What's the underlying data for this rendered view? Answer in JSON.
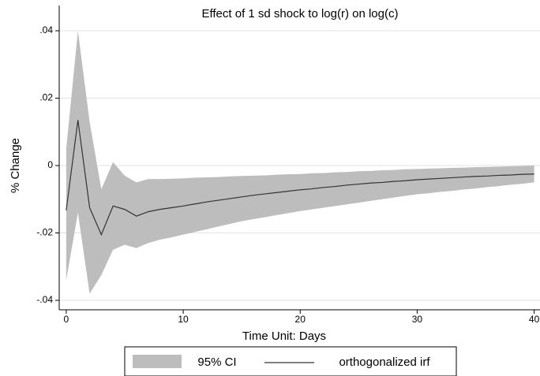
{
  "chart_data": {
    "type": "line",
    "title": "Effect of 1 sd shock to log(r) on log(c)",
    "x_label": "Time Unit: Days",
    "y_label": "% Change",
    "x": [
      0,
      1,
      2,
      3,
      4,
      5,
      6,
      7,
      8,
      9,
      10,
      11,
      12,
      13,
      14,
      15,
      16,
      17,
      18,
      19,
      20,
      21,
      22,
      23,
      24,
      25,
      26,
      27,
      28,
      29,
      30,
      31,
      32,
      33,
      34,
      35,
      36,
      37,
      38,
      39,
      40
    ],
    "band": {
      "name": "95% CI",
      "color": "#bdbdbd",
      "upper": [
        0.005,
        0.04,
        0.013,
        -0.007,
        0.001,
        -0.003,
        -0.005,
        -0.004,
        -0.004,
        -0.0039,
        -0.0038,
        -0.0036,
        -0.0035,
        -0.0034,
        -0.0032,
        -0.0031,
        -0.003,
        -0.0029,
        -0.0027,
        -0.0026,
        -0.0025,
        -0.0023,
        -0.0022,
        -0.002,
        -0.0019,
        -0.0017,
        -0.0016,
        -0.0014,
        -0.0013,
        -0.0011,
        -0.001,
        -0.0009,
        -0.0008,
        -0.0007,
        -0.0006,
        -0.0005,
        -0.0004,
        -0.0003,
        -0.0002,
        -0.0001,
        0
      ],
      "lower": [
        -0.034,
        -0.014,
        -0.038,
        -0.0325,
        -0.025,
        -0.0235,
        -0.0245,
        -0.023,
        -0.022,
        -0.0213,
        -0.0205,
        -0.0197,
        -0.0189,
        -0.0181,
        -0.0173,
        -0.0165,
        -0.0159,
        -0.0153,
        -0.0147,
        -0.0141,
        -0.0135,
        -0.013,
        -0.0125,
        -0.012,
        -0.0115,
        -0.011,
        -0.0105,
        -0.01,
        -0.0095,
        -0.009,
        -0.0085,
        -0.0082,
        -0.0078,
        -0.0075,
        -0.0071,
        -0.0068,
        -0.0064,
        -0.0061,
        -0.0057,
        -0.0054,
        -0.005
      ]
    },
    "series": [
      {
        "name": "orthogonalized irf",
        "color": "#333333",
        "values": [
          -0.0133,
          0.0135,
          -0.0125,
          -0.0205,
          -0.012,
          -0.013,
          -0.015,
          -0.0137,
          -0.013,
          -0.0125,
          -0.012,
          -0.0114,
          -0.0108,
          -0.0103,
          -0.0098,
          -0.0093,
          -0.0088,
          -0.0084,
          -0.008,
          -0.0076,
          -0.0072,
          -0.0069,
          -0.0065,
          -0.0062,
          -0.0058,
          -0.0055,
          -0.0052,
          -0.005,
          -0.0047,
          -0.0045,
          -0.0042,
          -0.004,
          -0.0038,
          -0.0036,
          -0.0034,
          -0.0032,
          -0.0031,
          -0.0029,
          -0.0028,
          -0.0026,
          -0.0025
        ]
      }
    ],
    "xlim": [
      -0.6,
      40.5
    ],
    "ylim": [
      -0.0428,
      0.0475
    ],
    "xticks": [
      0,
      10,
      20,
      30,
      40
    ],
    "yticks": [
      {
        "value": -0.04,
        "label": "-.04"
      },
      {
        "value": -0.02,
        "label": "-.02"
      },
      0,
      {
        "value": 0.02,
        "label": ".02"
      },
      {
        "value": 0.04,
        "label": ".04"
      }
    ],
    "grid": true,
    "legend": "bottom"
  }
}
